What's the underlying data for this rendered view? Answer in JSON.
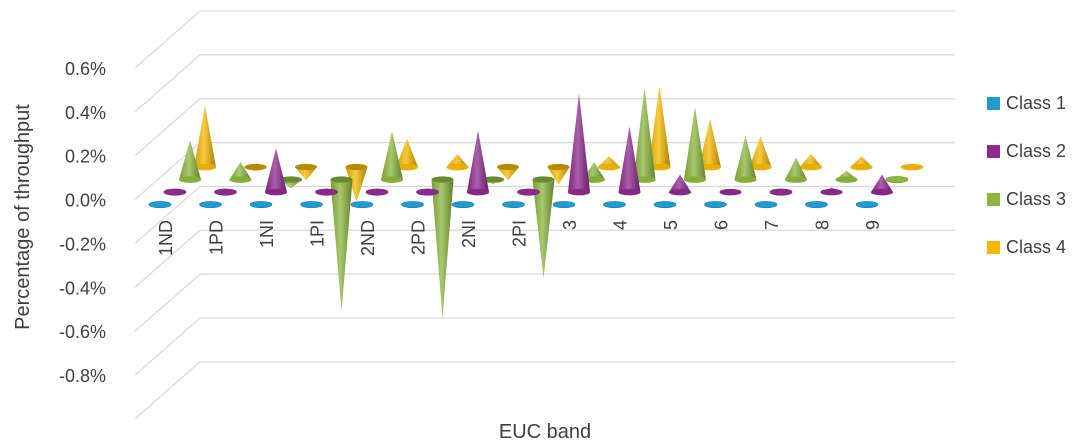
{
  "chart_data": {
    "type": "bar",
    "subtype": "3d-cone",
    "title": "",
    "xlabel": "EUC band",
    "ylabel": "Percentage of throughput",
    "ylim": [
      -0.8,
      0.6
    ],
    "ytick_labels": [
      "0.6%",
      "0.4%",
      "0.2%",
      "0.0%",
      "-0.2%",
      "-0.4%",
      "-0.6%",
      "-0.8%"
    ],
    "ytick_values": [
      0.6,
      0.4,
      0.2,
      0.0,
      -0.2,
      -0.4,
      -0.6,
      -0.8
    ],
    "categories": [
      "1ND",
      "1PD",
      "1NI",
      "1PI",
      "2ND",
      "2PD",
      "2NI",
      "2PI",
      "3",
      "4",
      "5",
      "6",
      "7",
      "8",
      "9"
    ],
    "series": [
      {
        "name": "Class 1",
        "color": "#1f9bd1",
        "values": [
          0,
          0,
          0,
          0,
          0,
          0,
          0,
          0,
          0,
          0,
          0,
          0,
          0,
          0,
          0
        ]
      },
      {
        "name": "Class 2",
        "color": "#8e2a8e",
        "values": [
          0,
          0,
          0.2,
          0,
          0,
          0,
          0.28,
          0,
          0.45,
          0.3,
          0.08,
          0.01,
          0,
          0.02,
          0.08
        ]
      },
      {
        "name": "Class 3",
        "color": "#8cb63c",
        "values": [
          0.18,
          0.08,
          -0.04,
          -0.6,
          0.22,
          -0.63,
          -0.02,
          -0.45,
          0.08,
          0.42,
          0.33,
          0.2,
          0.1,
          0.04,
          0
        ]
      },
      {
        "name": "Class 4",
        "color": "#f5b800",
        "values": [
          0.28,
          -0.02,
          -0.06,
          -0.16,
          0.13,
          0.06,
          -0.06,
          -0.08,
          0.05,
          0.37,
          0.22,
          0.14,
          0.06,
          0.05,
          0.01
        ]
      }
    ],
    "grid": true,
    "legend_position": "right"
  }
}
